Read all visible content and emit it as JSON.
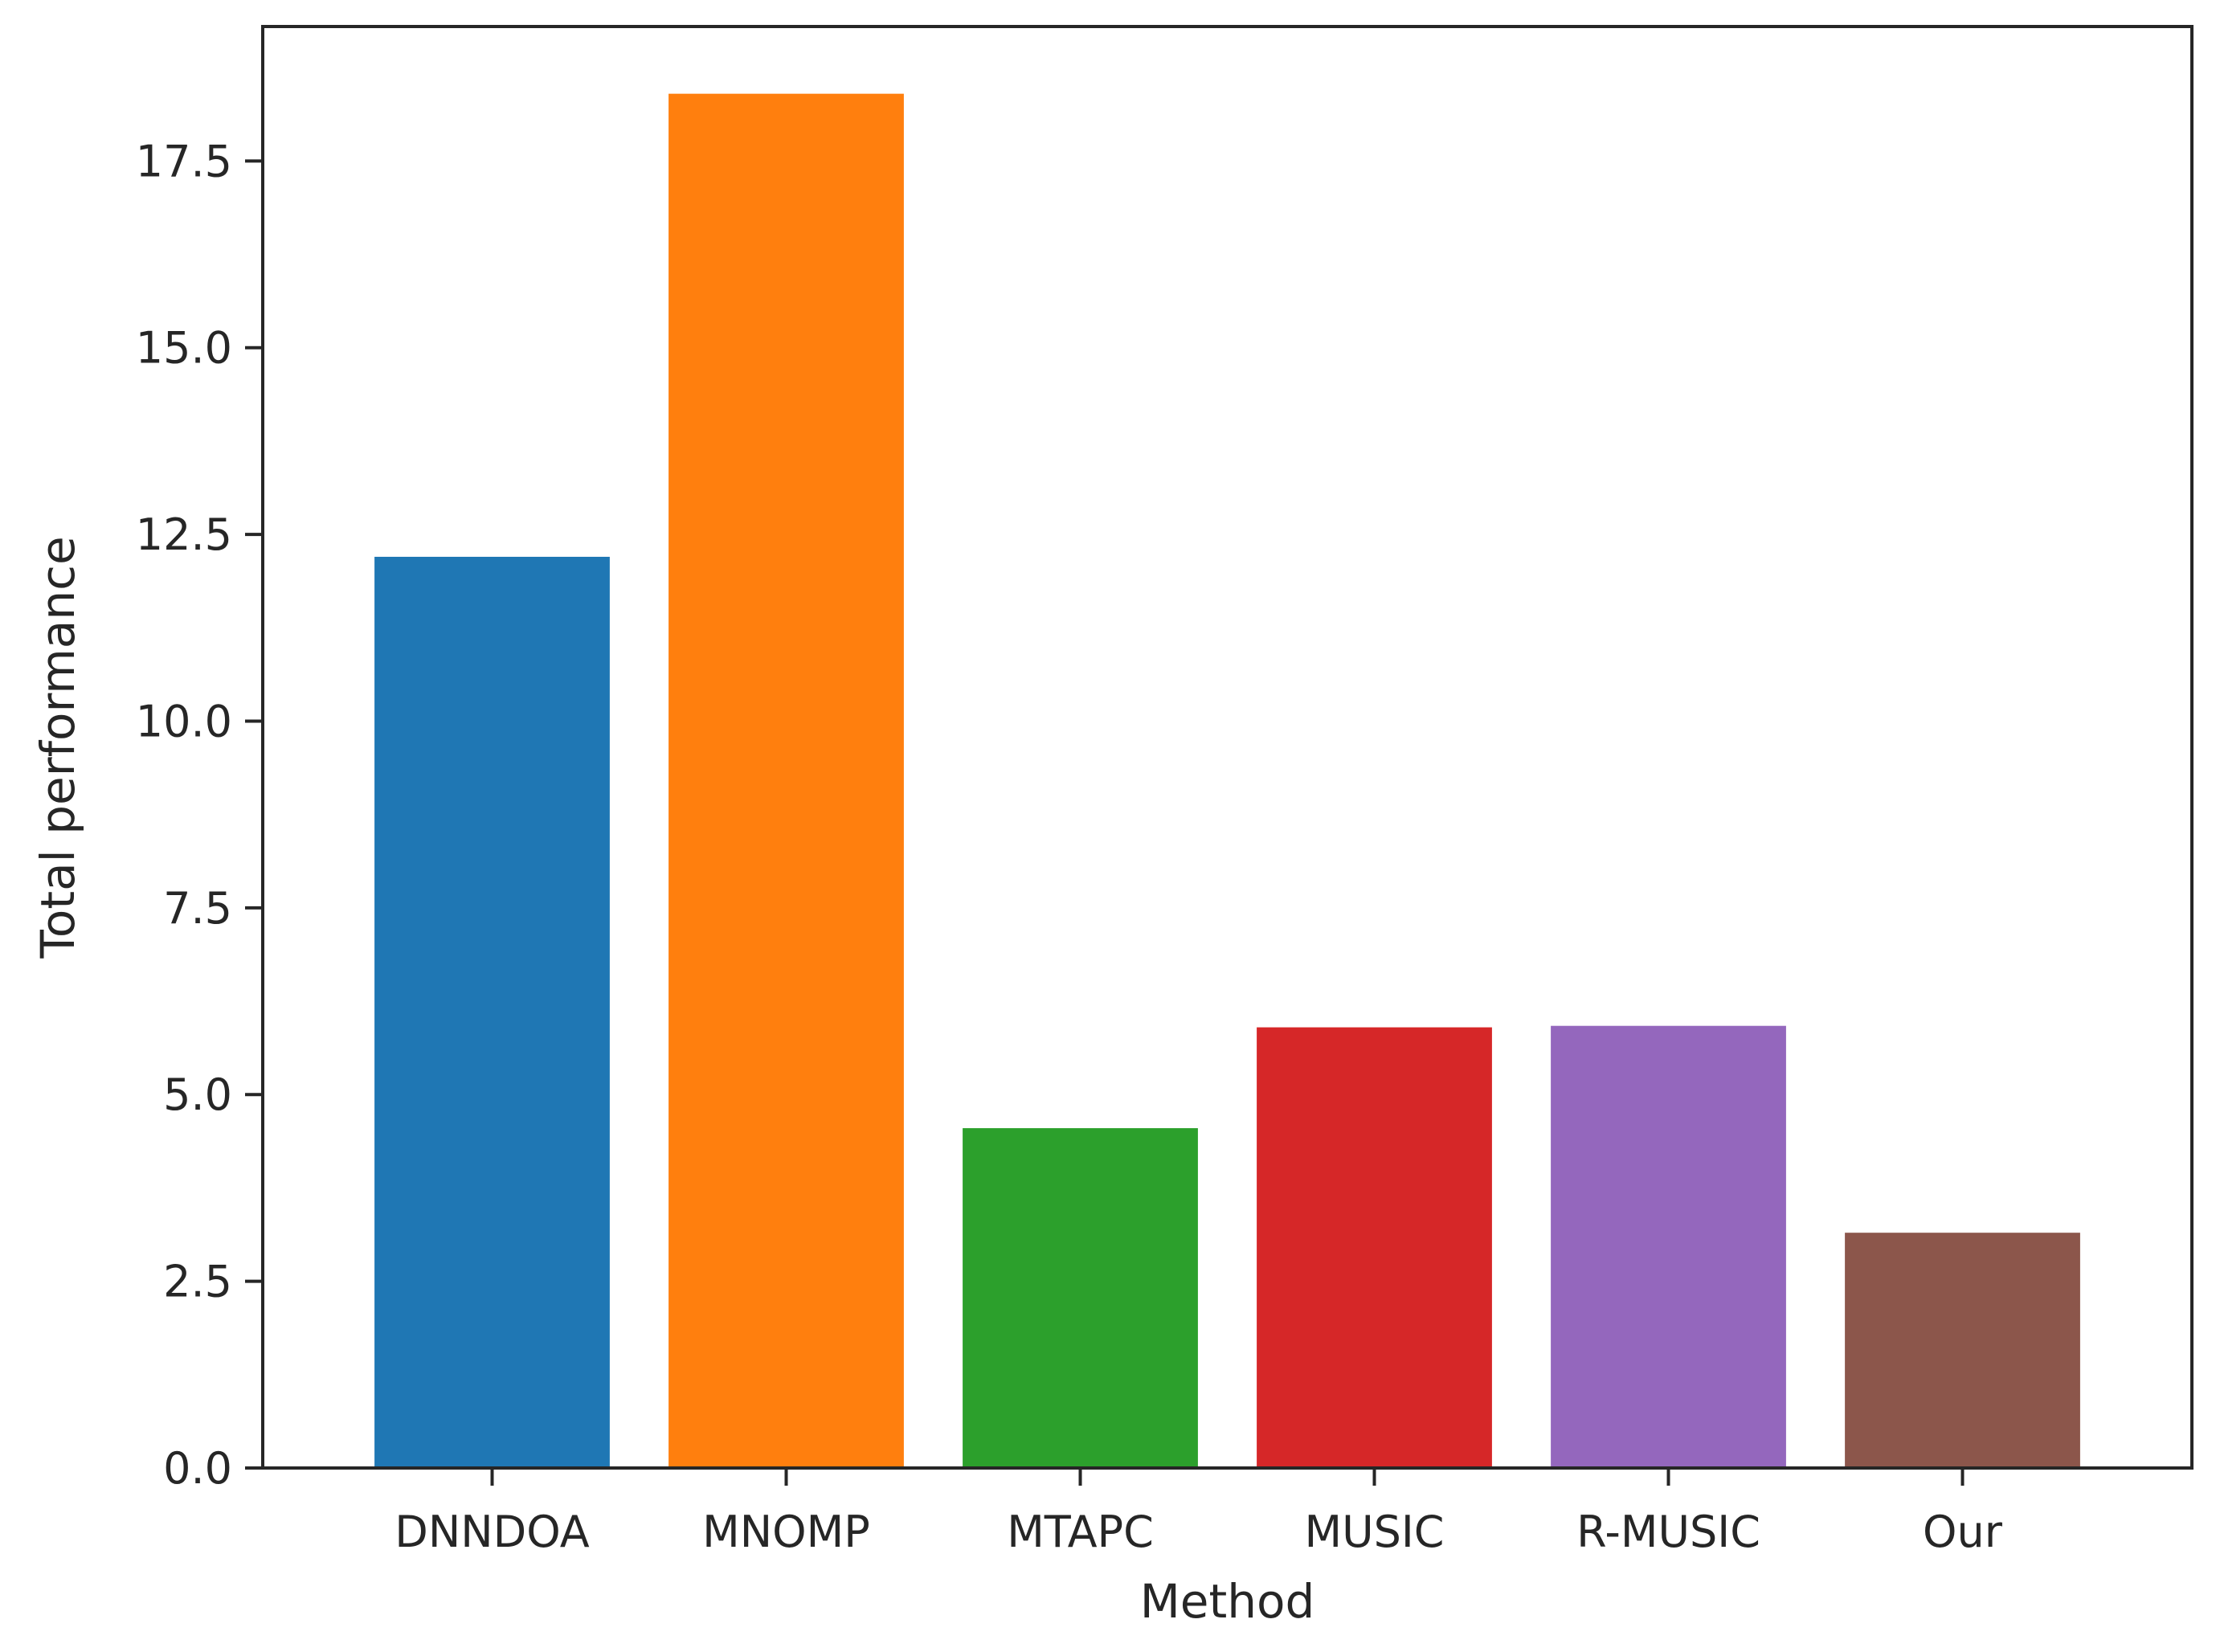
{
  "chart_data": {
    "type": "bar",
    "title": "",
    "xlabel": "Method",
    "ylabel": "Total performance",
    "categories": [
      "DNNDOA",
      "MNOMP",
      "MTAPC",
      "MUSIC",
      "R-MUSIC",
      "Our"
    ],
    "values": [
      12.2,
      18.4,
      4.55,
      5.9,
      5.92,
      3.15
    ],
    "colors": [
      "#1f77b4",
      "#ff7f0e",
      "#2ca02c",
      "#d62728",
      "#9467bd",
      "#8c564b"
    ],
    "ylim": [
      0,
      19.3
    ],
    "yticks": [
      0.0,
      2.5,
      5.0,
      7.5,
      10.0,
      12.5,
      15.0,
      17.5
    ],
    "ytick_labels": [
      "0.0",
      "2.5",
      "5.0",
      "7.5",
      "10.0",
      "12.5",
      "15.0",
      "17.5"
    ],
    "grid": false,
    "legend": "none"
  }
}
